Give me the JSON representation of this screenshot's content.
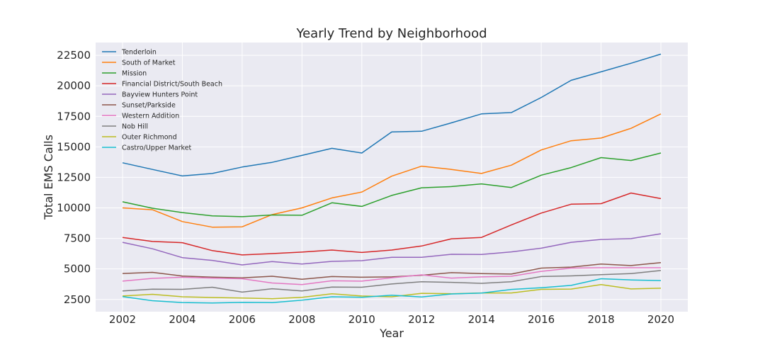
{
  "chart_data": {
    "type": "line",
    "title": "Yearly Trend by Neighborhood",
    "xlabel": "Year",
    "ylabel": "Total EMS Calls",
    "x": [
      2002,
      2003,
      2004,
      2005,
      2006,
      2007,
      2008,
      2009,
      2010,
      2011,
      2012,
      2013,
      2014,
      2015,
      2016,
      2017,
      2018,
      2019,
      2020
    ],
    "xticks": [
      "2002",
      "2004",
      "2006",
      "2008",
      "2010",
      "2012",
      "2014",
      "2016",
      "2018",
      "2020"
    ],
    "yticks": [
      "2500",
      "5000",
      "7500",
      "10000",
      "12500",
      "15000",
      "17500",
      "20000",
      "22500"
    ],
    "xlim": [
      2001.1,
      2020.9
    ],
    "ylim": [
      1500,
      23550
    ],
    "grid": true,
    "legend_position": "top-left",
    "background": "#eaeaf2",
    "series": [
      {
        "name": "Tenderloin",
        "color": "#1f77b4",
        "values": [
          13700,
          13150,
          12620,
          12820,
          13350,
          13730,
          14300,
          14880,
          14500,
          16220,
          16280,
          16970,
          17700,
          17810,
          19050,
          20450,
          21150,
          21850,
          22600
        ]
      },
      {
        "name": "South of Market",
        "color": "#ff7f0e",
        "values": [
          10000,
          9850,
          8880,
          8420,
          8450,
          9450,
          10000,
          10820,
          11300,
          12600,
          13420,
          13150,
          12820,
          13500,
          14750,
          15500,
          15720,
          16520,
          17700
        ]
      },
      {
        "name": "Mission",
        "color": "#2ca02c",
        "values": [
          10500,
          9970,
          9620,
          9350,
          9280,
          9420,
          9400,
          10420,
          10120,
          11020,
          11650,
          11750,
          11970,
          11670,
          12680,
          13300,
          14120,
          13880,
          14500
        ]
      },
      {
        "name": "Financial District/South Beach",
        "color": "#d62728",
        "values": [
          7580,
          7250,
          7150,
          6500,
          6150,
          6260,
          6380,
          6550,
          6350,
          6550,
          6880,
          7470,
          7580,
          8600,
          9580,
          10300,
          10350,
          11220,
          10760
        ]
      },
      {
        "name": "Bayview Hunters Point",
        "color": "#9467bd",
        "values": [
          7180,
          6650,
          5930,
          5700,
          5330,
          5600,
          5400,
          5620,
          5680,
          5950,
          5950,
          6200,
          6180,
          6400,
          6700,
          7180,
          7420,
          7480,
          7880
        ]
      },
      {
        "name": "Sunset/Parkside",
        "color": "#8c564b",
        "values": [
          4630,
          4720,
          4420,
          4330,
          4270,
          4400,
          4150,
          4380,
          4320,
          4350,
          4480,
          4700,
          4620,
          4580,
          5070,
          5150,
          5400,
          5280,
          5520
        ]
      },
      {
        "name": "Western Addition",
        "color": "#e377c2",
        "values": [
          4000,
          4230,
          4320,
          4250,
          4200,
          3850,
          3720,
          4030,
          4000,
          4280,
          4520,
          4250,
          4350,
          4400,
          4800,
          5070,
          5100,
          5100,
          5100
        ]
      },
      {
        "name": "Nob Hill",
        "color": "#7f7f7f",
        "values": [
          3200,
          3340,
          3330,
          3500,
          3100,
          3380,
          3200,
          3520,
          3500,
          3770,
          3950,
          3900,
          3820,
          3950,
          4380,
          4430,
          4530,
          4620,
          4870
        ]
      },
      {
        "name": "Outer Richmond",
        "color": "#bcbd22",
        "values": [
          2780,
          2920,
          2720,
          2660,
          2620,
          2560,
          2680,
          2970,
          2780,
          2720,
          3000,
          2970,
          3030,
          3030,
          3330,
          3350,
          3720,
          3360,
          3420
        ]
      },
      {
        "name": "Castro/Upper Market",
        "color": "#17becf",
        "values": [
          2730,
          2400,
          2250,
          2210,
          2260,
          2240,
          2440,
          2720,
          2680,
          2850,
          2700,
          2950,
          3020,
          3320,
          3460,
          3650,
          4200,
          4100,
          4050
        ]
      }
    ]
  }
}
